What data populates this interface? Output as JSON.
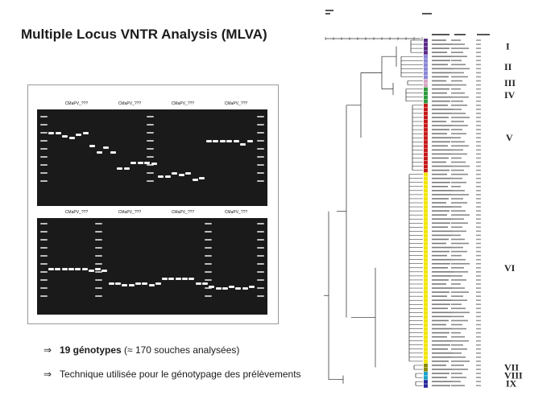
{
  "title": "Multiple Locus VNTR Analysis (MLVA)",
  "gel": {
    "top_labels": [
      "CMaPV_???",
      "CMaPV_???",
      "CMaPV_???",
      "CMaPV_???"
    ],
    "bottom_labels": [
      "CMaPV_???",
      "CMaPV_???",
      "CMaPV_???",
      "CMaPV_???"
    ]
  },
  "bullets": {
    "arrow": "⇒",
    "line1_bold": "19 génotypes",
    "line1_rest": " (≈ 170 souches analysées)",
    "line2": "Technique utilisée pour le génotypage des prélèvements"
  },
  "dendrogram": {
    "clusters": [
      "I",
      "II",
      "III",
      "IV",
      "V",
      "VI",
      "VII",
      "VIII",
      "IX"
    ],
    "colors": {
      "I": "#5b2a86",
      "II": "#8a86d6",
      "III": "#d8a7c8",
      "IV": "#2e9b3c",
      "V": "#c61b1b",
      "VI": "#f2e600",
      "VII": "#8a8a00",
      "VIII": "#17a3c9",
      "IX": "#2a2aa0"
    }
  }
}
